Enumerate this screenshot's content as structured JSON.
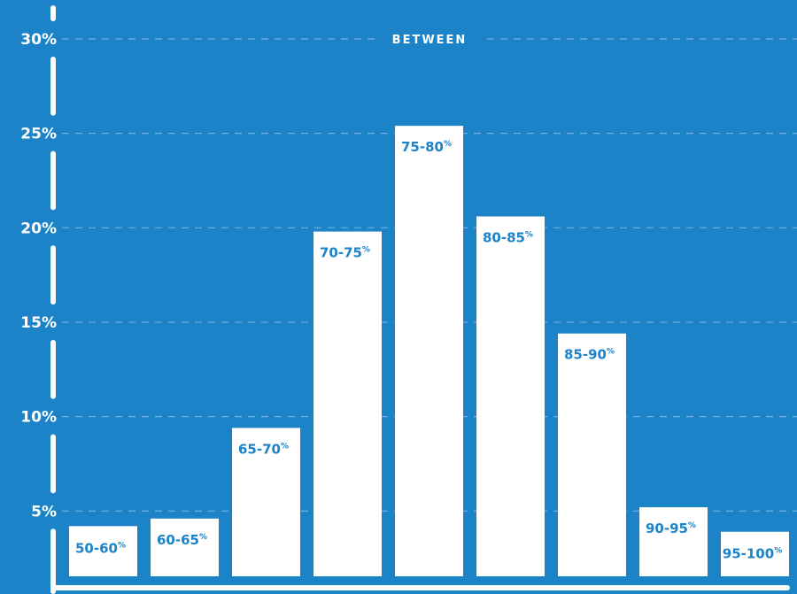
{
  "chart_data": {
    "type": "bar",
    "title": "",
    "annotation": "BETWEEN",
    "categories": [
      "50-60",
      "60-65",
      "65-70",
      "70-75",
      "75-80",
      "80-85",
      "85-90",
      "90-95",
      "95-100"
    ],
    "category_suffix": "%",
    "values": [
      4.2,
      4.6,
      9.4,
      19.8,
      25.4,
      20.6,
      14.4,
      5.2,
      3.9
    ],
    "ylim": [
      2,
      31
    ],
    "yticks": [
      5,
      10,
      15,
      20,
      25,
      30
    ],
    "ytick_labels": [
      "5%",
      "10%",
      "15%",
      "20%",
      "25%",
      "30%"
    ],
    "grid": true,
    "colors": {
      "background": "#1c83c9",
      "bar": "#ffffff",
      "label": "#1c83c9",
      "grid": "#6fb1e0"
    }
  }
}
